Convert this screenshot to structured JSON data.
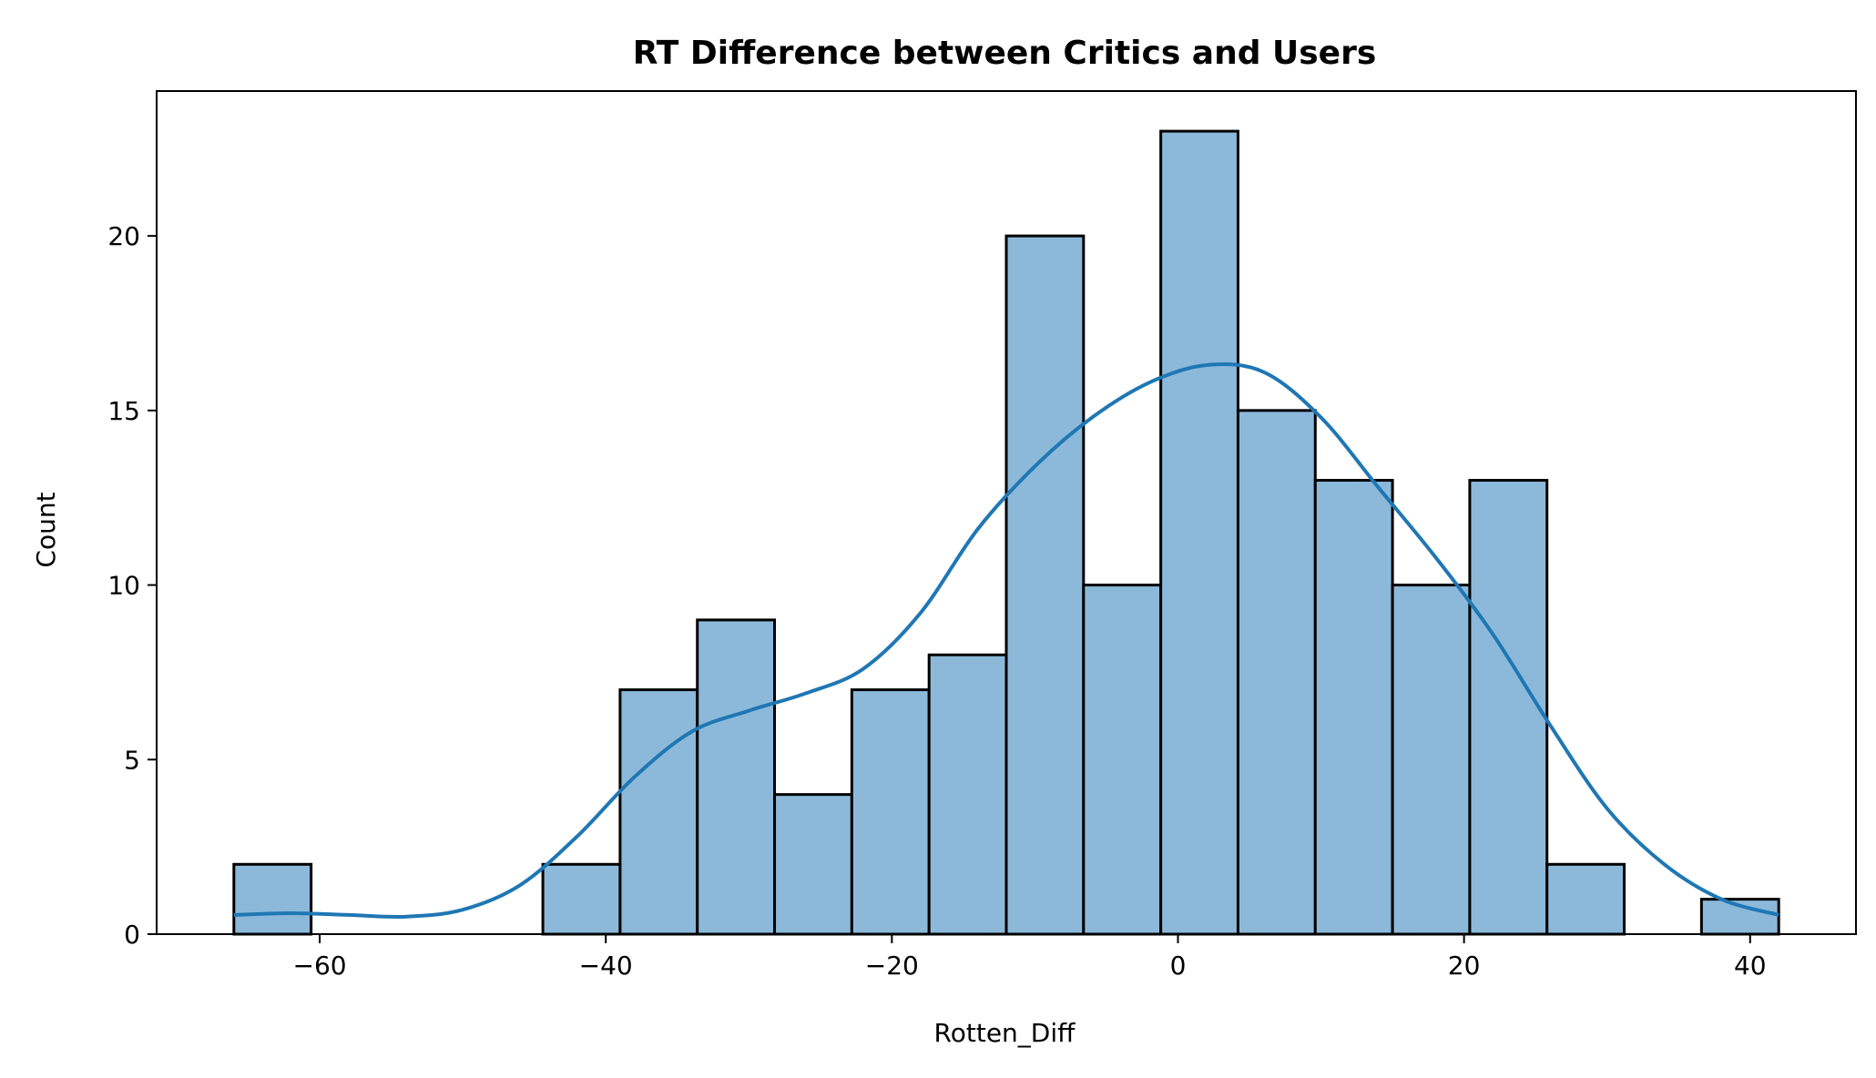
{
  "chart_data": {
    "type": "bar",
    "title": "RT Difference between Critics and Users",
    "xlabel": "Rotten_Diff",
    "ylabel": "Count",
    "bin_edges": [
      -66,
      -60.6,
      -55.2,
      -49.8,
      -44.4,
      -39,
      -33.6,
      -28.2,
      -22.8,
      -17.4,
      -12,
      -6.6,
      -1.2,
      4.2,
      9.6,
      15,
      20.4,
      25.8,
      31.2,
      36.6,
      42
    ],
    "counts": [
      2,
      0,
      0,
      0,
      2,
      7,
      9,
      4,
      7,
      8,
      20,
      10,
      23,
      15,
      13,
      10,
      13,
      2,
      0,
      1
    ],
    "kde": {
      "x": [
        -66,
        -62,
        -58,
        -54,
        -50,
        -46,
        -42,
        -38,
        -34,
        -30,
        -26,
        -22,
        -18,
        -14,
        -10,
        -6,
        -2,
        2,
        6,
        10,
        14,
        18,
        22,
        26,
        30,
        34,
        38,
        42
      ],
      "y": [
        0.55,
        0.6,
        0.55,
        0.5,
        0.7,
        1.4,
        2.8,
        4.5,
        5.8,
        6.4,
        6.9,
        7.6,
        9.2,
        11.6,
        13.4,
        14.8,
        15.8,
        16.3,
        16.1,
        14.8,
        12.8,
        10.8,
        8.6,
        6.0,
        3.6,
        2.0,
        1.0,
        0.55
      ]
    },
    "xlim": [
      -71.4,
      47.4
    ],
    "ylim": [
      0,
      24.15
    ],
    "xticks": [
      -60,
      -40,
      -20,
      0,
      20,
      40
    ],
    "xtick_labels": [
      "−60",
      "−40",
      "−20",
      "0",
      "20",
      "40"
    ],
    "yticks": [
      0,
      5,
      10,
      15,
      20
    ],
    "ytick_labels": [
      "0",
      "5",
      "10",
      "15",
      "20"
    ],
    "bar_color": "#8cb9da",
    "bar_edge_color": "#000000",
    "line_color": "#1f77b4",
    "grid": false
  }
}
